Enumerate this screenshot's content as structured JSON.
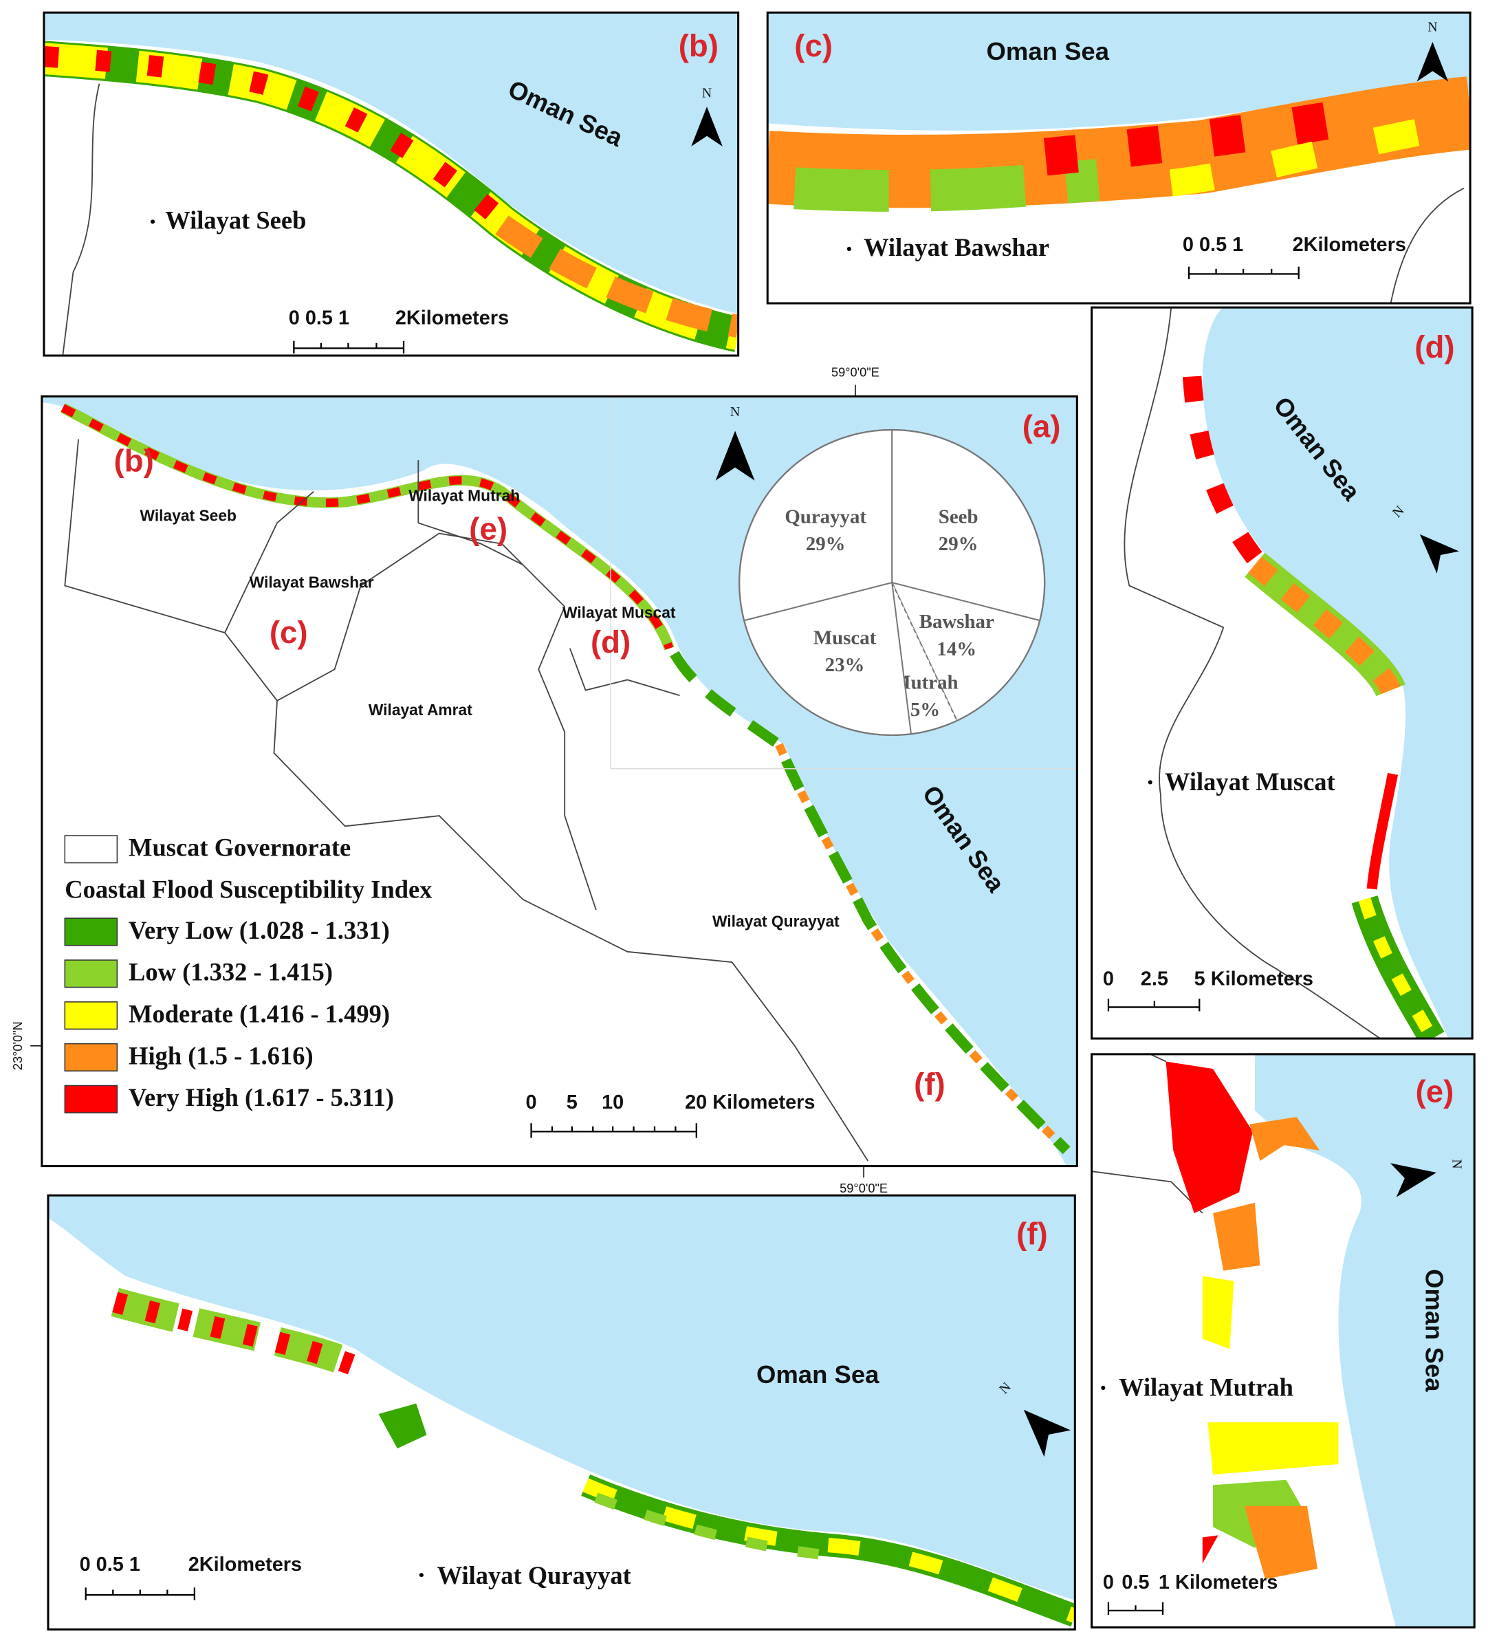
{
  "panel_b": {
    "label": "(b)",
    "sea": "Oman Sea",
    "place": "Wilayat Seeb",
    "north": "N",
    "scale_labels": [
      "0 0.5 1",
      "2Kilometers"
    ]
  },
  "panel_c": {
    "label": "(c)",
    "sea": "Oman Sea",
    "place": "Wilayat Bawshar",
    "north": "N",
    "scale_labels": [
      "0 0.5 1",
      "2Kilometers"
    ]
  },
  "panel_d": {
    "label": "(d)",
    "sea": "Oman Sea",
    "place": "Wilayat Muscat",
    "north": "N",
    "scale_labels": [
      "0",
      "2.5",
      "5 Kilometers"
    ]
  },
  "panel_e": {
    "label": "(e)",
    "sea": "Oman Sea",
    "place": "Wilayat Mutrah",
    "north": "N",
    "scale_labels": [
      "0",
      "0.5",
      "1 Kilometers"
    ]
  },
  "panel_f": {
    "label": "(f)",
    "sea": "Oman Sea",
    "place": "Wilayat Qurayyat",
    "north": "N",
    "scale_labels": [
      "0 0.5 1",
      "2Kilometers"
    ]
  },
  "panel_a": {
    "label": "(a)",
    "sea": "Oman Sea",
    "north": "N",
    "places": [
      "Wilayat Seeb",
      "Wilayat Bawshar",
      "Wilayat Mutrah",
      "Wilayat Muscat",
      "Wilayat Amrat",
      "Wilayat Qurayyat"
    ],
    "insets": [
      "(b)",
      "(c)",
      "(d)",
      "(e)",
      "(f)"
    ],
    "longitude": "59°0'0\"E",
    "latitude": "23°0'0\"N",
    "scale_labels": [
      "0",
      "5",
      "10",
      "20 Kilometers"
    ],
    "legend": {
      "boundary": "Muscat Governorate",
      "title": "Coastal Flood Susceptibility Index",
      "items": [
        {
          "label": "Very Low (1.028 - 1.331)",
          "color": "#38a800"
        },
        {
          "label": "Low (1.332 - 1.415)",
          "color": "#8bd32a"
        },
        {
          "label": "Moderate (1.416 - 1.499)",
          "color": "#ffff00"
        },
        {
          "label": "High (1.5 - 1.616)",
          "color": "#ff8c1a"
        },
        {
          "label": "Very High (1.617 - 5.311)",
          "color": "#ff0000"
        }
      ]
    }
  },
  "chart_data": {
    "type": "pie",
    "categories": [
      "Seeb",
      "Bawshar",
      "Mutrah",
      "Muscat",
      "Qurayyat"
    ],
    "values": [
      29,
      14,
      5,
      23,
      29
    ],
    "value_labels": [
      "29%",
      "14%",
      "5%",
      "23%",
      "29%"
    ]
  }
}
